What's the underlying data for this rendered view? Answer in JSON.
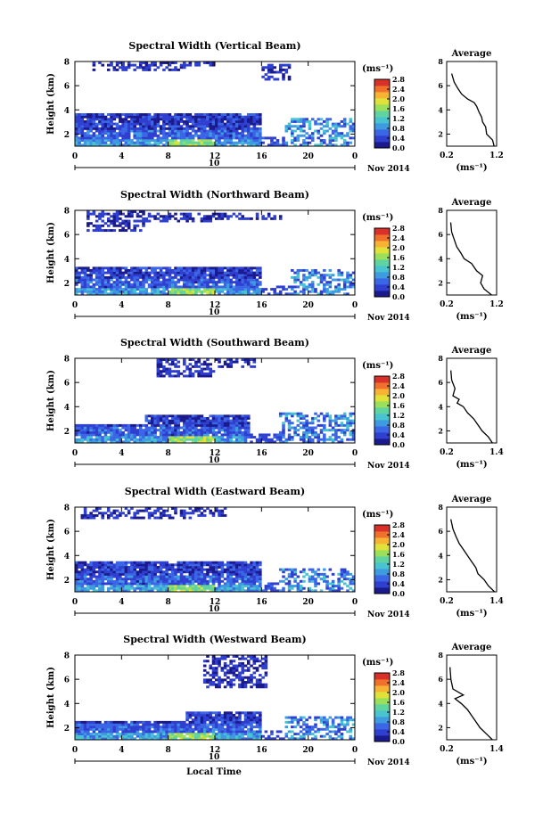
{
  "figure": {
    "date_label": "Nov 2014",
    "day_label": "10",
    "xlabel_bottom": "Local Time",
    "colorbar_unit": "(ms⁻¹)",
    "colorbar_ticks": [
      "0.0",
      "0.4",
      "0.8",
      "1.2",
      "1.6",
      "2.0",
      "2.4",
      "2.8"
    ],
    "colors": {
      "scale": [
        "#1a1a8c",
        "#2f3fd0",
        "#3b66e6",
        "#3f9be0",
        "#47c4cf",
        "#5fd3a0",
        "#9be05a",
        "#e0e23a",
        "#f6b334",
        "#f0702c",
        "#d9302a"
      ]
    }
  },
  "chart_data": [
    {
      "type": "heatmap",
      "title": "Spectral Width (Vertical Beam)",
      "xlabel": "",
      "ylabel": "Height (km)",
      "xticks": [
        "0",
        "4",
        "8",
        "12",
        "16",
        "20",
        "0"
      ],
      "yticks": [
        "2",
        "4",
        "6",
        "8"
      ],
      "xlim": [
        0,
        24
      ],
      "ylim": [
        1,
        8
      ],
      "profile": {
        "title": "Average",
        "xlabel": "(ms⁻¹)",
        "xticks": [
          "0.2",
          "1.2"
        ],
        "xlim": [
          0.2,
          1.2
        ],
        "yticks": [
          "2",
          "4",
          "6",
          "8"
        ],
        "ylim": [
          1,
          8
        ],
        "x": [
          1.15,
          1.12,
          1.0,
          0.98,
          0.92,
          0.9,
          0.85,
          0.8,
          0.75,
          0.62,
          0.5,
          0.42,
          0.35,
          0.3
        ],
        "y": [
          1.0,
          1.5,
          2.0,
          2.6,
          3.0,
          3.4,
          3.8,
          4.3,
          4.6,
          4.9,
          5.3,
          5.8,
          6.3,
          7.0
        ]
      }
    },
    {
      "type": "heatmap",
      "title": "Spectral Width (Northward Beam)",
      "xlabel": "",
      "ylabel": "Height (km)",
      "xticks": [
        "0",
        "4",
        "8",
        "12",
        "16",
        "20",
        "0"
      ],
      "yticks": [
        "2",
        "4",
        "6",
        "8"
      ],
      "xlim": [
        0,
        24
      ],
      "ylim": [
        1,
        8
      ],
      "profile": {
        "title": "Average",
        "xlabel": "(ms⁻¹)",
        "xticks": [
          "0.2",
          "1.2"
        ],
        "xlim": [
          0.2,
          1.2
        ],
        "yticks": [
          "2",
          "4",
          "6",
          "8"
        ],
        "ylim": [
          1,
          8
        ],
        "x": [
          1.1,
          0.95,
          0.88,
          0.92,
          0.8,
          0.7,
          0.55,
          0.48,
          0.4,
          0.35,
          0.3,
          0.28
        ],
        "y": [
          1.0,
          1.5,
          2.0,
          2.6,
          3.0,
          3.6,
          4.0,
          4.5,
          5.0,
          5.6,
          6.2,
          7.0
        ]
      }
    },
    {
      "type": "heatmap",
      "title": "Spectral Width (Southward Beam)",
      "xlabel": "",
      "ylabel": "Height (km)",
      "xticks": [
        "0",
        "4",
        "8",
        "12",
        "16",
        "20",
        "0"
      ],
      "yticks": [
        "2",
        "4",
        "6",
        "8"
      ],
      "xlim": [
        0,
        24
      ],
      "ylim": [
        1,
        8
      ],
      "profile": {
        "title": "Average",
        "xlabel": "(ms⁻¹)",
        "xticks": [
          "0.2",
          "1.4"
        ],
        "xlim": [
          0.2,
          1.4
        ],
        "yticks": [
          "2",
          "4",
          "6",
          "8"
        ],
        "ylim": [
          1,
          8
        ],
        "x": [
          1.3,
          1.2,
          1.05,
          0.95,
          0.85,
          0.7,
          0.6,
          0.45,
          0.5,
          0.35,
          0.4,
          0.32,
          0.3
        ],
        "y": [
          1.0,
          1.5,
          2.0,
          2.5,
          3.0,
          3.5,
          4.0,
          4.3,
          4.6,
          4.9,
          5.5,
          6.2,
          7.0
        ]
      }
    },
    {
      "type": "heatmap",
      "title": "Spectral Width (Eastward Beam)",
      "xlabel": "",
      "ylabel": "Height (km)",
      "xticks": [
        "0",
        "4",
        "8",
        "12",
        "16",
        "20",
        "0"
      ],
      "yticks": [
        "2",
        "4",
        "6",
        "8"
      ],
      "xlim": [
        0,
        24
      ],
      "ylim": [
        1,
        8
      ],
      "profile": {
        "title": "Average",
        "xlabel": "(ms⁻¹)",
        "xticks": [
          "0.2",
          "1.4"
        ],
        "xlim": [
          0.2,
          1.4
        ],
        "yticks": [
          "2",
          "4",
          "6",
          "8"
        ],
        "ylim": [
          1,
          8
        ],
        "x": [
          1.35,
          1.2,
          1.1,
          0.95,
          0.9,
          0.8,
          0.7,
          0.6,
          0.5,
          0.42,
          0.35,
          0.3
        ],
        "y": [
          1.0,
          1.5,
          2.0,
          2.5,
          3.0,
          3.5,
          4.0,
          4.5,
          5.0,
          5.6,
          6.2,
          7.0
        ]
      }
    },
    {
      "type": "heatmap",
      "title": "Spectral Width (Westward Beam)",
      "xlabel": "Local Time",
      "ylabel": "Height (km)",
      "xticks": [
        "0",
        "4",
        "8",
        "12",
        "16",
        "20",
        "0"
      ],
      "yticks": [
        "2",
        "4",
        "6",
        "8"
      ],
      "xlim": [
        0,
        24
      ],
      "ylim": [
        1,
        8
      ],
      "profile": {
        "title": "Average",
        "xlabel": "(ms⁻¹)",
        "xticks": [
          "0.2",
          "1.4"
        ],
        "xlim": [
          0.2,
          1.4
        ],
        "yticks": [
          "2",
          "4",
          "6",
          "8"
        ],
        "ylim": [
          1,
          8
        ],
        "x": [
          1.3,
          1.15,
          1.0,
          0.9,
          0.8,
          0.7,
          0.55,
          0.4,
          0.6,
          0.35,
          0.3,
          0.28
        ],
        "y": [
          1.0,
          1.5,
          2.0,
          2.5,
          3.0,
          3.5,
          4.0,
          4.4,
          4.7,
          5.2,
          6.0,
          7.0
        ]
      }
    }
  ]
}
